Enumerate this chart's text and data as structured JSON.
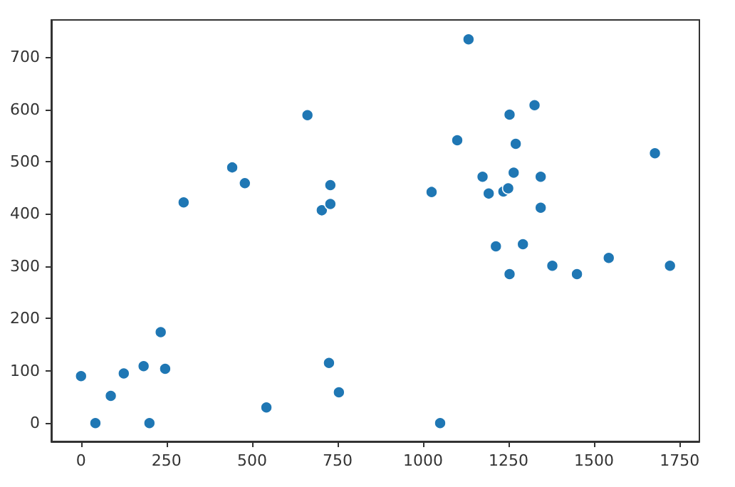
{
  "chart_data": {
    "type": "scatter",
    "color": "#1f77b4",
    "marker": "circle",
    "grid": false,
    "x": [
      0,
      42,
      87,
      125,
      183,
      233,
      246,
      200,
      300,
      442,
      479,
      542,
      662,
      704,
      729,
      729,
      725,
      754,
      1025,
      1050,
      1100,
      1133,
      1174,
      1192,
      1235,
      1249,
      1253,
      1326,
      1271,
      1265,
      1344,
      1344,
      1213,
      1292,
      1253,
      1378,
      1450,
      1543,
      1678,
      1722
    ],
    "values": [
      90,
      0,
      52,
      95,
      109,
      174,
      104,
      0,
      422,
      489,
      459,
      30,
      589,
      407,
      455,
      419,
      115,
      59,
      442,
      0,
      541,
      734,
      471,
      439,
      443,
      449,
      590,
      608,
      534,
      479,
      471,
      412,
      338,
      342,
      285,
      301,
      285,
      316,
      516,
      301
    ],
    "xlim": [
      -87,
      1808
    ],
    "ylim": [
      -35,
      771
    ],
    "xticks": [
      0,
      250,
      500,
      750,
      1000,
      1250,
      1500,
      1750
    ],
    "yticks": [
      0,
      100,
      200,
      300,
      400,
      500,
      600,
      700
    ]
  }
}
